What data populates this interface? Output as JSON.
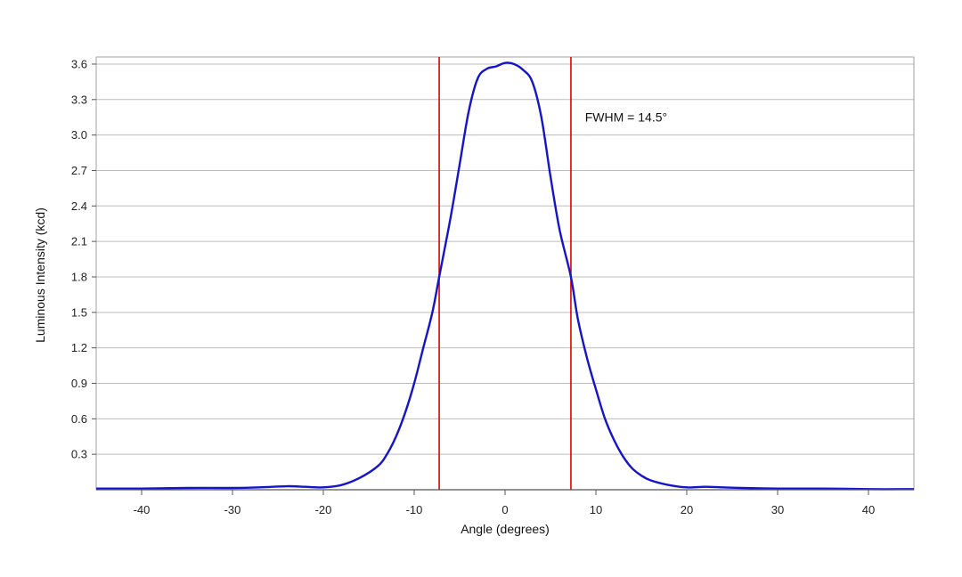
{
  "chart_data": {
    "type": "line",
    "xlabel": "Angle (degrees)",
    "ylabel": "Luminous Intensity (kcd)",
    "xlim": [
      -45,
      45
    ],
    "ylim": [
      0,
      3.6
    ],
    "x_ticks": [
      -40,
      -30,
      -20,
      -10,
      0,
      10,
      20,
      30,
      40
    ],
    "y_ticks": [
      0.3,
      0.6,
      0.9,
      1.2,
      1.5,
      1.8,
      2.1,
      2.4,
      2.7,
      3.0,
      3.3,
      3.6
    ],
    "x_tick_labels": [
      "-40",
      "-30",
      "-20",
      "-10",
      "0",
      "10",
      "20",
      "30",
      "40"
    ],
    "y_tick_labels": [
      "0.3",
      "0.6",
      "0.9",
      "1.2",
      "1.5",
      "1.8",
      "2.1",
      "2.4",
      "2.7",
      "3.0",
      "3.3",
      "3.6"
    ],
    "grid": true,
    "series": [
      {
        "color": "#1414c8",
        "points": [
          [
            -45,
            0.01
          ],
          [
            -40,
            0.01
          ],
          [
            -35,
            0.015
          ],
          [
            -30,
            0.015
          ],
          [
            -27,
            0.02
          ],
          [
            -24,
            0.03
          ],
          [
            -22,
            0.025
          ],
          [
            -20,
            0.02
          ],
          [
            -18,
            0.04
          ],
          [
            -16,
            0.1
          ],
          [
            -14,
            0.2
          ],
          [
            -13,
            0.3
          ],
          [
            -12,
            0.45
          ],
          [
            -11,
            0.65
          ],
          [
            -10,
            0.9
          ],
          [
            -9,
            1.2
          ],
          [
            -8,
            1.5
          ],
          [
            -7.25,
            1.8
          ],
          [
            -6,
            2.3
          ],
          [
            -5,
            2.75
          ],
          [
            -4,
            3.2
          ],
          [
            -3,
            3.48
          ],
          [
            -2,
            3.56
          ],
          [
            -1,
            3.58
          ],
          [
            0,
            3.61
          ],
          [
            1,
            3.6
          ],
          [
            2,
            3.55
          ],
          [
            3,
            3.45
          ],
          [
            4,
            3.15
          ],
          [
            5,
            2.65
          ],
          [
            6,
            2.2
          ],
          [
            7.25,
            1.8
          ],
          [
            8,
            1.45
          ],
          [
            9,
            1.12
          ],
          [
            10,
            0.85
          ],
          [
            11,
            0.6
          ],
          [
            12,
            0.42
          ],
          [
            13,
            0.28
          ],
          [
            14,
            0.18
          ],
          [
            15,
            0.12
          ],
          [
            16,
            0.08
          ],
          [
            18,
            0.04
          ],
          [
            20,
            0.02
          ],
          [
            22,
            0.025
          ],
          [
            24,
            0.02
          ],
          [
            26,
            0.015
          ],
          [
            30,
            0.01
          ],
          [
            35,
            0.01
          ],
          [
            40,
            0.005
          ],
          [
            45,
            0.005
          ]
        ]
      }
    ],
    "markers": [
      {
        "x": -7.25,
        "color": "#e00000"
      },
      {
        "x": 7.25,
        "color": "#e00000"
      }
    ],
    "annotation": {
      "text": "FWHM = 14.5°",
      "x": 8.8,
      "y": 3.15
    },
    "colors": {
      "grid": "#bdbdbd",
      "frame": "#a0a0a0",
      "axis": "#555555"
    }
  }
}
